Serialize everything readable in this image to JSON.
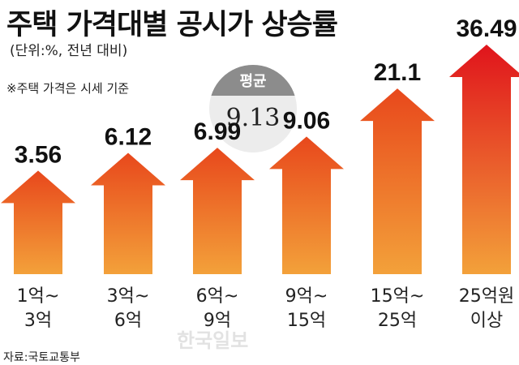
{
  "header": {
    "title": "주택 가격대별 공시가 상승률",
    "subtitle": "(단위:%, 전년 대비)",
    "note": "※주택 가격은 시세 기준"
  },
  "average": {
    "label": "평균",
    "value": "9.13"
  },
  "source": "자료:국토교통부",
  "watermark": "한국일보",
  "colors": {
    "arrow_top": "#e8481c",
    "arrow_bottom": "#f3a13a",
    "arrow_top_tall": "#e0141c"
  },
  "chart_data": {
    "type": "bar",
    "categories": [
      "1억~ 3억",
      "3억~ 6억",
      "6억~ 9억",
      "9억~ 15억",
      "15억~ 25억",
      "25억원 이상"
    ],
    "category_lines": [
      [
        "1억~",
        "3억"
      ],
      [
        "3억~",
        "6억"
      ],
      [
        "6억~",
        "9억"
      ],
      [
        "9억~",
        "15억"
      ],
      [
        "15억~",
        "25억"
      ],
      [
        "25억원",
        "이상"
      ]
    ],
    "values": [
      3.56,
      6.12,
      6.99,
      9.06,
      21.1,
      36.49
    ],
    "value_labels": [
      "3.56",
      "6.12",
      "6.99",
      "9.06",
      "21.1",
      "36.49"
    ],
    "title": "주택 가격대별 공시가 상승률",
    "ylabel": "",
    "xlabel": ""
  }
}
